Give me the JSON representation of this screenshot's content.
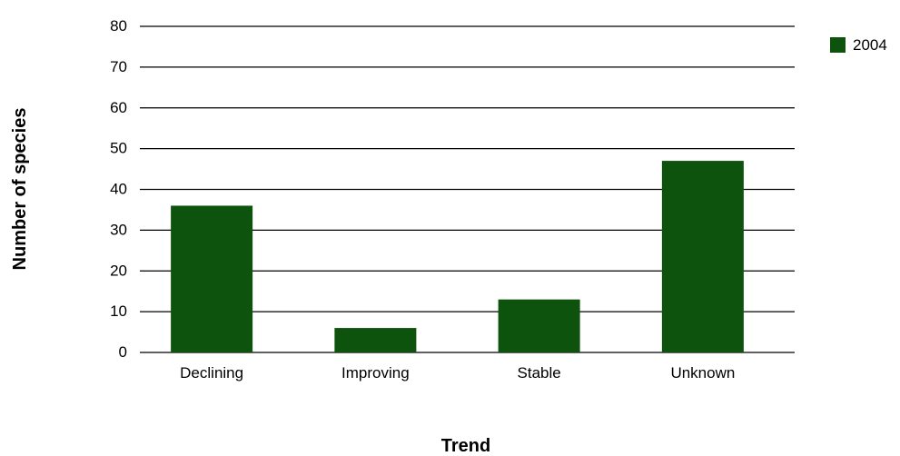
{
  "chart_data": {
    "type": "bar",
    "title": "",
    "xlabel": "Trend",
    "ylabel": "Number of species",
    "categories": [
      "Declining",
      "Improving",
      "Stable",
      "Unknown"
    ],
    "series": [
      {
        "name": "2004",
        "values": [
          36,
          6,
          13,
          47
        ],
        "color": "#0d520d"
      }
    ],
    "ylim": [
      0,
      80
    ],
    "yticks": [
      0,
      10,
      20,
      30,
      40,
      50,
      60,
      70,
      80
    ],
    "grid": true,
    "legend_position": "top-right"
  }
}
